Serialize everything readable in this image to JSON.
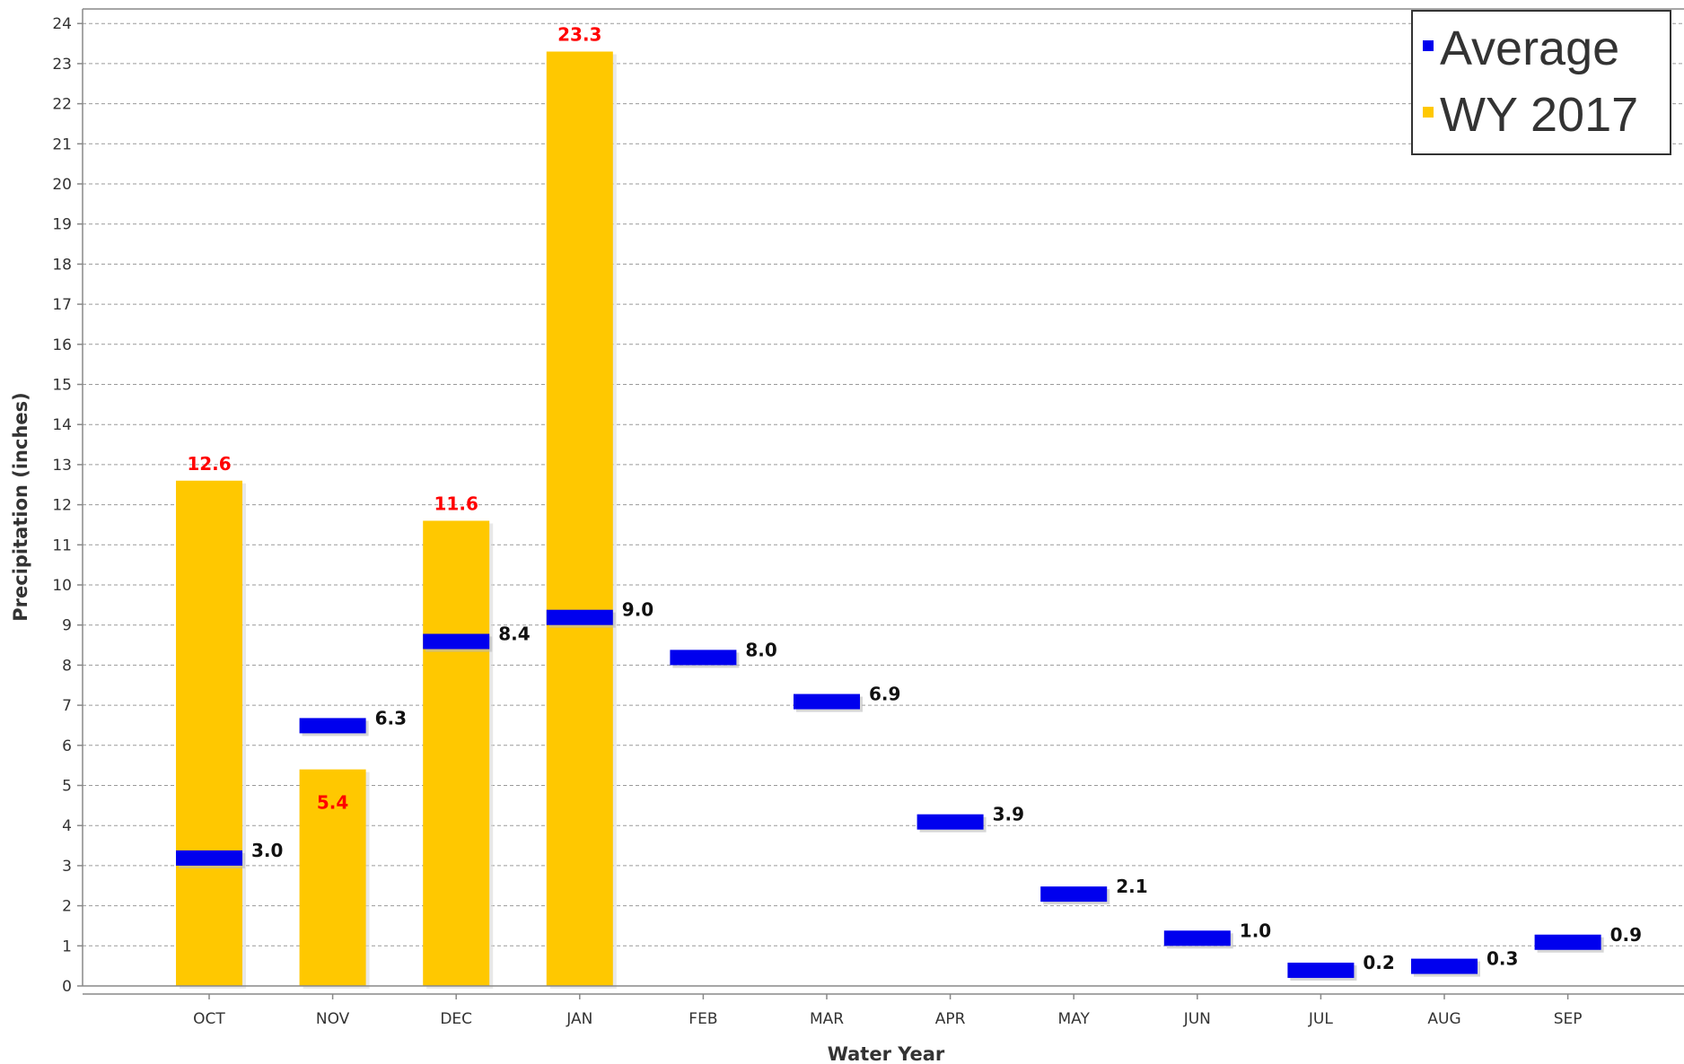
{
  "chart_data": {
    "type": "bar",
    "title": "",
    "xlabel": "Water Year",
    "ylabel": "Precipitation (inches)",
    "ylim": [
      0,
      24
    ],
    "y_ticks": [
      "0",
      "1",
      "2",
      "3",
      "4",
      "5",
      "6",
      "7",
      "8",
      "9",
      "10",
      "11",
      "12",
      "13",
      "14",
      "15",
      "16",
      "17",
      "18",
      "19",
      "20",
      "21",
      "22",
      "23",
      "24"
    ],
    "grid": true,
    "legend_position": "top-right",
    "categories": [
      "OCT",
      "NOV",
      "DEC",
      "JAN",
      "FEB",
      "MAR",
      "APR",
      "MAY",
      "JUN",
      "JUL",
      "AUG",
      "SEP"
    ],
    "series": [
      {
        "name": "Average",
        "color": "#0000ee",
        "mark": "horizontal-tick",
        "values": [
          3.0,
          6.3,
          8.4,
          9.0,
          8.0,
          6.9,
          3.9,
          2.1,
          1.0,
          0.2,
          0.3,
          0.9
        ],
        "labels": [
          "3.0",
          "6.3",
          "8.4",
          "9.0",
          "8.0",
          "6.9",
          "3.9",
          "2.1",
          "1.0",
          "0.2",
          "0.3",
          "0.9"
        ]
      },
      {
        "name": "WY 2017",
        "color": "#ffc800",
        "mark": "bar",
        "values": [
          12.6,
          5.4,
          11.6,
          23.3,
          null,
          null,
          null,
          null,
          null,
          null,
          null,
          null
        ],
        "labels": [
          "12.6",
          "5.4",
          "11.6",
          "23.3",
          "",
          "",
          "",
          "",
          "",
          "",
          "",
          ""
        ],
        "label_color": "#ff0000"
      }
    ]
  }
}
